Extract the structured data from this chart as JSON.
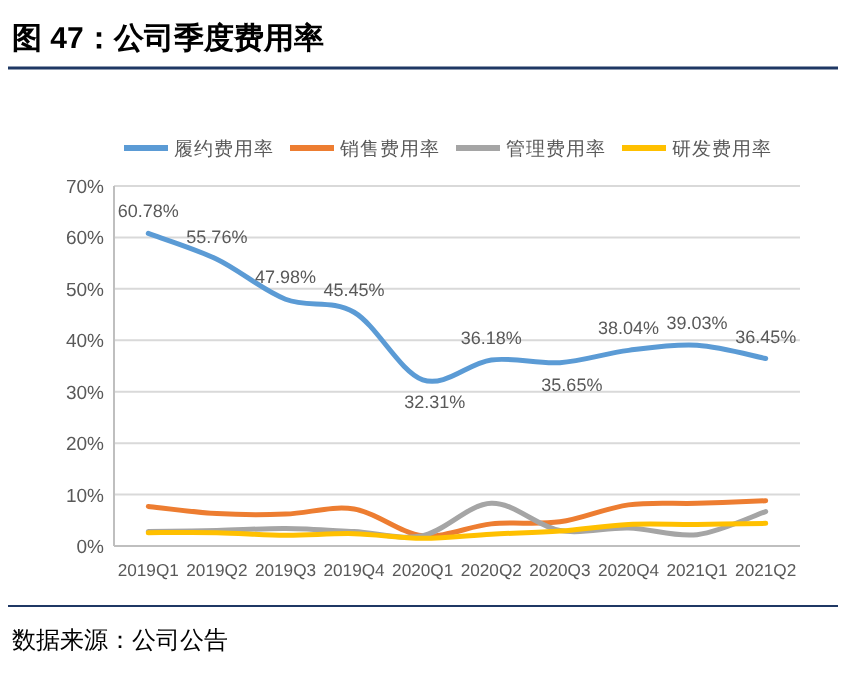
{
  "chart_data": {
    "type": "line",
    "title": "图 47：公司季度费用率",
    "annotations": [
      "数据来源：公司公告"
    ],
    "categories": [
      "2019Q1",
      "2019Q2",
      "2019Q3",
      "2019Q4",
      "2020Q1",
      "2020Q2",
      "2020Q3",
      "2020Q4",
      "2021Q1",
      "2021Q2"
    ],
    "series": [
      {
        "name": "履约费用率",
        "color": "#5b9bd5",
        "values": [
          60.78,
          55.76,
          47.98,
          45.45,
          32.31,
          36.18,
          35.65,
          38.04,
          39.03,
          36.45
        ],
        "value_labels": [
          "60.78%",
          "55.76%",
          "47.98%",
          "45.45%",
          "32.31%",
          "36.18%",
          "35.65%",
          "38.04%",
          "39.03%",
          "36.45%"
        ]
      },
      {
        "name": "销售费用率",
        "color": "#ed7d31",
        "values": [
          7.7,
          6.3,
          6.2,
          7.2,
          2.0,
          4.3,
          4.7,
          8.0,
          8.3,
          8.8
        ]
      },
      {
        "name": "管理费用率",
        "color": "#a5a5a5",
        "values": [
          2.8,
          3.0,
          3.4,
          2.8,
          2.0,
          8.3,
          3.0,
          3.5,
          2.2,
          6.7
        ]
      },
      {
        "name": "研发费用率",
        "color": "#ffc000",
        "values": [
          2.6,
          2.6,
          2.1,
          2.4,
          1.5,
          2.3,
          2.9,
          4.2,
          4.2,
          4.4
        ]
      }
    ],
    "ylim": [
      0,
      70
    ],
    "yticks": [
      {
        "value": 0,
        "label": "0%"
      },
      {
        "value": 10,
        "label": "10%"
      },
      {
        "value": 20,
        "label": "20%"
      },
      {
        "value": 30,
        "label": "30%"
      },
      {
        "value": 40,
        "label": "40%"
      },
      {
        "value": 50,
        "label": "50%"
      },
      {
        "value": 60,
        "label": "60%"
      },
      {
        "value": 70,
        "label": "70%"
      }
    ],
    "grid": "y",
    "legend": "top"
  }
}
